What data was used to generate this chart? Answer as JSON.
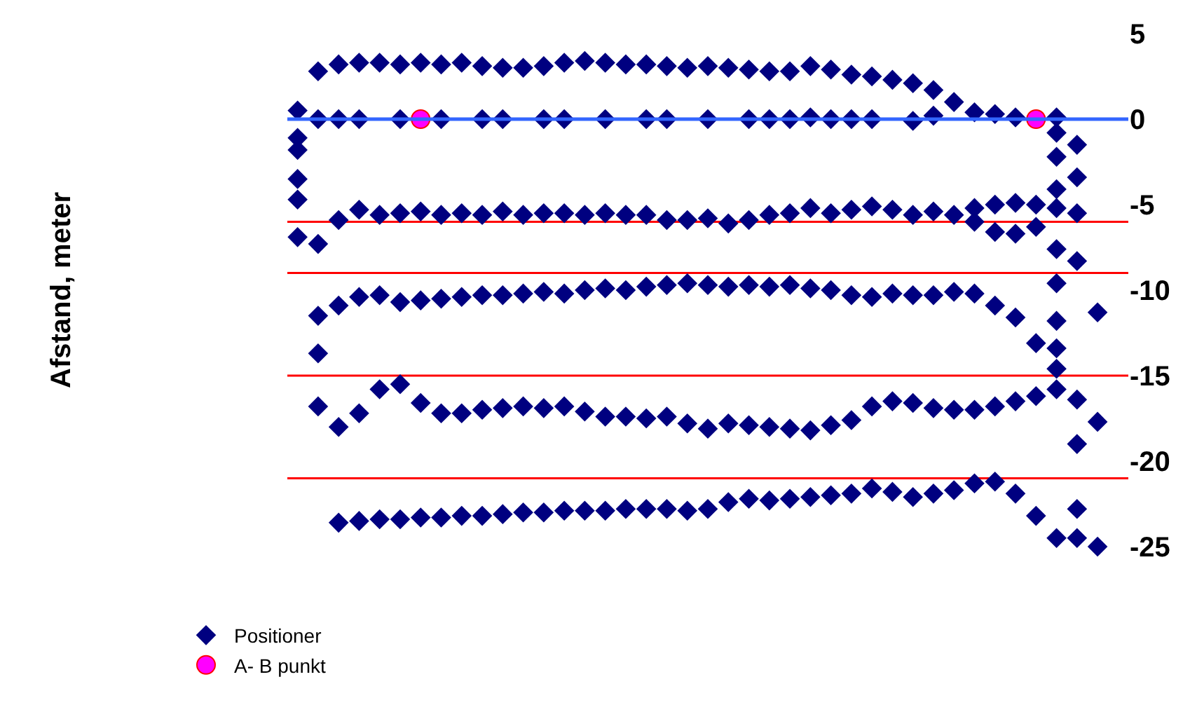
{
  "chart_data": {
    "type": "scatter",
    "annotations": [
      "Afstand, meter"
    ],
    "categories": [
      null,
      null,
      null,
      null,
      null,
      null,
      null,
      null,
      null,
      null,
      null,
      null,
      null,
      null,
      null,
      null,
      null,
      null,
      null,
      null,
      null,
      null,
      null,
      null,
      null,
      null,
      null,
      null,
      null,
      null,
      null,
      null,
      null,
      null,
      null,
      null,
      null,
      null,
      null,
      null,
      null
    ],
    "ylim": [
      -25,
      5
    ],
    "yticks": [
      5,
      0,
      -5,
      -10,
      -15,
      -20,
      -25
    ],
    "tick_labels": "y",
    "legend": "bottom",
    "marker": "diamond",
    "ref_lines": [
      {
        "axis": "y",
        "value": 0,
        "color": "#3366ff"
      },
      {
        "axis": "y",
        "value": -6,
        "color": "#ff0000"
      },
      {
        "axis": "y",
        "value": -9,
        "color": "#ff0000"
      },
      {
        "axis": "y",
        "value": -15,
        "color": "#ff0000"
      },
      {
        "axis": "y",
        "value": -21,
        "color": "#ff0000"
      }
    ],
    "series": [
      {
        "name": "Positioner",
        "color": "#000080",
        "values": [
          null,
          2.8,
          3.2,
          3.3,
          3.3,
          3.2,
          3.3,
          3.2,
          3.3,
          3.1,
          3.0,
          3.0,
          3.1,
          3.3,
          3.4,
          3.3,
          3.2,
          3.2,
          3.1,
          3.0,
          3.1,
          3.0,
          2.9,
          2.8,
          2.8,
          3.1,
          2.9,
          2.6,
          2.5,
          2.3,
          2.1,
          1.7,
          1.0,
          0.4,
          null,
          null,
          null,
          null,
          null,
          null,
          null
        ]
      },
      {
        "color": "#000080",
        "values": [
          0.5,
          0,
          0,
          0,
          null,
          0,
          null,
          0,
          null,
          0,
          0,
          null,
          0,
          0,
          null,
          0,
          null,
          0,
          0,
          null,
          0,
          null,
          0,
          0,
          0,
          0.1,
          0,
          0,
          0,
          null,
          -0.1,
          0.2,
          null,
          null,
          0.3,
          0.1,
          null,
          0.1,
          null,
          null,
          null
        ]
      },
      {
        "color": "#000080",
        "values": [
          null,
          null,
          -5.9,
          -5.3,
          -5.6,
          -5.5,
          -5.4,
          -5.6,
          -5.5,
          -5.6,
          -5.4,
          -5.6,
          -5.5,
          -5.5,
          -5.6,
          -5.5,
          -5.6,
          -5.6,
          -5.9,
          -5.9,
          -5.8,
          -6.1,
          -5.9,
          -5.6,
          -5.5,
          -5.2,
          -5.5,
          -5.3,
          -5.1,
          -5.3,
          -5.6,
          -5.4,
          -5.6,
          -5.2,
          -5.0,
          -4.9,
          -5.0,
          -5.2,
          -5.5,
          null,
          null
        ]
      },
      {
        "color": "#000080",
        "values": [
          -6.9,
          -7.3,
          null,
          null,
          null,
          null,
          null,
          null,
          null,
          null,
          null,
          null,
          null,
          null,
          null,
          null,
          null,
          null,
          null,
          null,
          null,
          null,
          null,
          null,
          null,
          null,
          null,
          null,
          null,
          null,
          null,
          null,
          null,
          -6.0,
          -6.6,
          -6.7,
          -6.3,
          -7.6,
          -8.3,
          null,
          null
        ]
      },
      {
        "color": "#000080",
        "values": [
          null,
          -11.5,
          -10.9,
          -10.4,
          -10.3,
          -10.7,
          -10.6,
          -10.5,
          -10.4,
          -10.3,
          -10.3,
          -10.2,
          -10.1,
          -10.2,
          -10.0,
          -9.9,
          -10.0,
          -9.8,
          -9.7,
          -9.6,
          -9.7,
          -9.8,
          -9.7,
          -9.8,
          -9.7,
          -9.9,
          -10.0,
          -10.3,
          -10.4,
          -10.2,
          -10.3,
          -10.3,
          -10.1,
          -10.2,
          -10.9,
          -11.6,
          -13.1,
          -14.6,
          null,
          -11.3,
          null
        ]
      },
      {
        "color": "#000080",
        "values": [
          null,
          -16.8,
          -18.0,
          -17.2,
          -15.8,
          -15.5,
          -16.6,
          -17.2,
          -17.2,
          -17.0,
          -16.9,
          -16.8,
          -16.9,
          -16.8,
          -17.1,
          -17.4,
          -17.4,
          -17.5,
          -17.4,
          -17.8,
          -18.1,
          -17.8,
          -17.9,
          -18.0,
          -18.1,
          -18.2,
          -17.9,
          -17.6,
          -16.8,
          -16.5,
          -16.6,
          -16.9,
          -17.0,
          -17.0,
          -16.8,
          -16.5,
          -16.2,
          -15.8,
          null,
          -17.7,
          null
        ]
      },
      {
        "color": "#000080",
        "values": [
          null,
          null,
          -23.6,
          -23.5,
          -23.4,
          -23.4,
          -23.3,
          -23.3,
          -23.2,
          -23.2,
          -23.1,
          -23.0,
          -23.0,
          -22.9,
          -22.9,
          -22.9,
          -22.8,
          -22.8,
          -22.8,
          -22.9,
          -22.8,
          -22.4,
          -22.2,
          -22.3,
          -22.2,
          -22.1,
          -22.0,
          -21.9,
          -21.6,
          -21.8,
          -22.1,
          -21.9,
          -21.7,
          -21.3,
          -21.2,
          -21.9,
          -23.2,
          -24.5,
          -24.5,
          -25.0,
          null
        ]
      },
      {
        "color": "#000080",
        "values": [
          -1.1,
          -13.7,
          null,
          null,
          null,
          null,
          null,
          null,
          null,
          null,
          null,
          null,
          null,
          null,
          null,
          null,
          null,
          null,
          null,
          null,
          null,
          null,
          null,
          null,
          null,
          null,
          null,
          null,
          null,
          null,
          null,
          null,
          null,
          null,
          null,
          null,
          null,
          -0.8,
          -1.5,
          null,
          null
        ]
      },
      {
        "color": "#000080",
        "values": [
          -1.8,
          null,
          null,
          null,
          null,
          null,
          null,
          null,
          null,
          null,
          null,
          null,
          null,
          null,
          null,
          null,
          null,
          null,
          null,
          null,
          null,
          null,
          null,
          null,
          null,
          null,
          null,
          null,
          null,
          null,
          null,
          null,
          null,
          null,
          null,
          null,
          null,
          -2.2,
          -3.4,
          null,
          null
        ]
      },
      {
        "color": "#000080",
        "values": [
          -3.5,
          null,
          null,
          null,
          null,
          null,
          null,
          null,
          null,
          null,
          null,
          null,
          null,
          null,
          null,
          null,
          null,
          null,
          null,
          null,
          null,
          null,
          null,
          null,
          null,
          null,
          null,
          null,
          null,
          null,
          null,
          null,
          null,
          null,
          null,
          null,
          null,
          -4.1,
          null,
          null,
          null
        ]
      },
      {
        "color": "#000080",
        "values": [
          -4.7,
          null,
          null,
          null,
          null,
          null,
          null,
          null,
          null,
          null,
          null,
          null,
          null,
          null,
          null,
          null,
          null,
          null,
          null,
          null,
          null,
          null,
          null,
          null,
          null,
          null,
          null,
          null,
          null,
          null,
          null,
          null,
          null,
          null,
          null,
          null,
          null,
          -13.4,
          -19.0,
          null,
          null
        ]
      },
      {
        "color": "#000080",
        "values": [
          null,
          null,
          null,
          null,
          null,
          null,
          null,
          null,
          null,
          null,
          null,
          null,
          null,
          null,
          null,
          null,
          null,
          null,
          null,
          null,
          null,
          null,
          null,
          null,
          null,
          null,
          null,
          null,
          null,
          null,
          null,
          null,
          null,
          null,
          null,
          null,
          null,
          -11.8,
          -16.4,
          null,
          null
        ]
      },
      {
        "color": "#000080",
        "values": [
          null,
          null,
          null,
          null,
          null,
          null,
          null,
          null,
          null,
          null,
          null,
          null,
          null,
          null,
          null,
          null,
          null,
          null,
          null,
          null,
          null,
          null,
          null,
          null,
          null,
          null,
          null,
          null,
          null,
          null,
          null,
          null,
          null,
          null,
          null,
          null,
          null,
          -9.6,
          -22.8,
          null,
          null
        ]
      },
      {
        "name": "A- B punkt",
        "type": "scatter",
        "marker": "circle",
        "color": "#ff00ff",
        "values": [
          null,
          null,
          null,
          null,
          null,
          null,
          0,
          null,
          null,
          null,
          null,
          null,
          null,
          null,
          null,
          null,
          null,
          null,
          null,
          null,
          null,
          null,
          null,
          null,
          null,
          null,
          null,
          null,
          null,
          null,
          null,
          null,
          null,
          null,
          null,
          null,
          0,
          null,
          null,
          null,
          null
        ]
      }
    ]
  }
}
